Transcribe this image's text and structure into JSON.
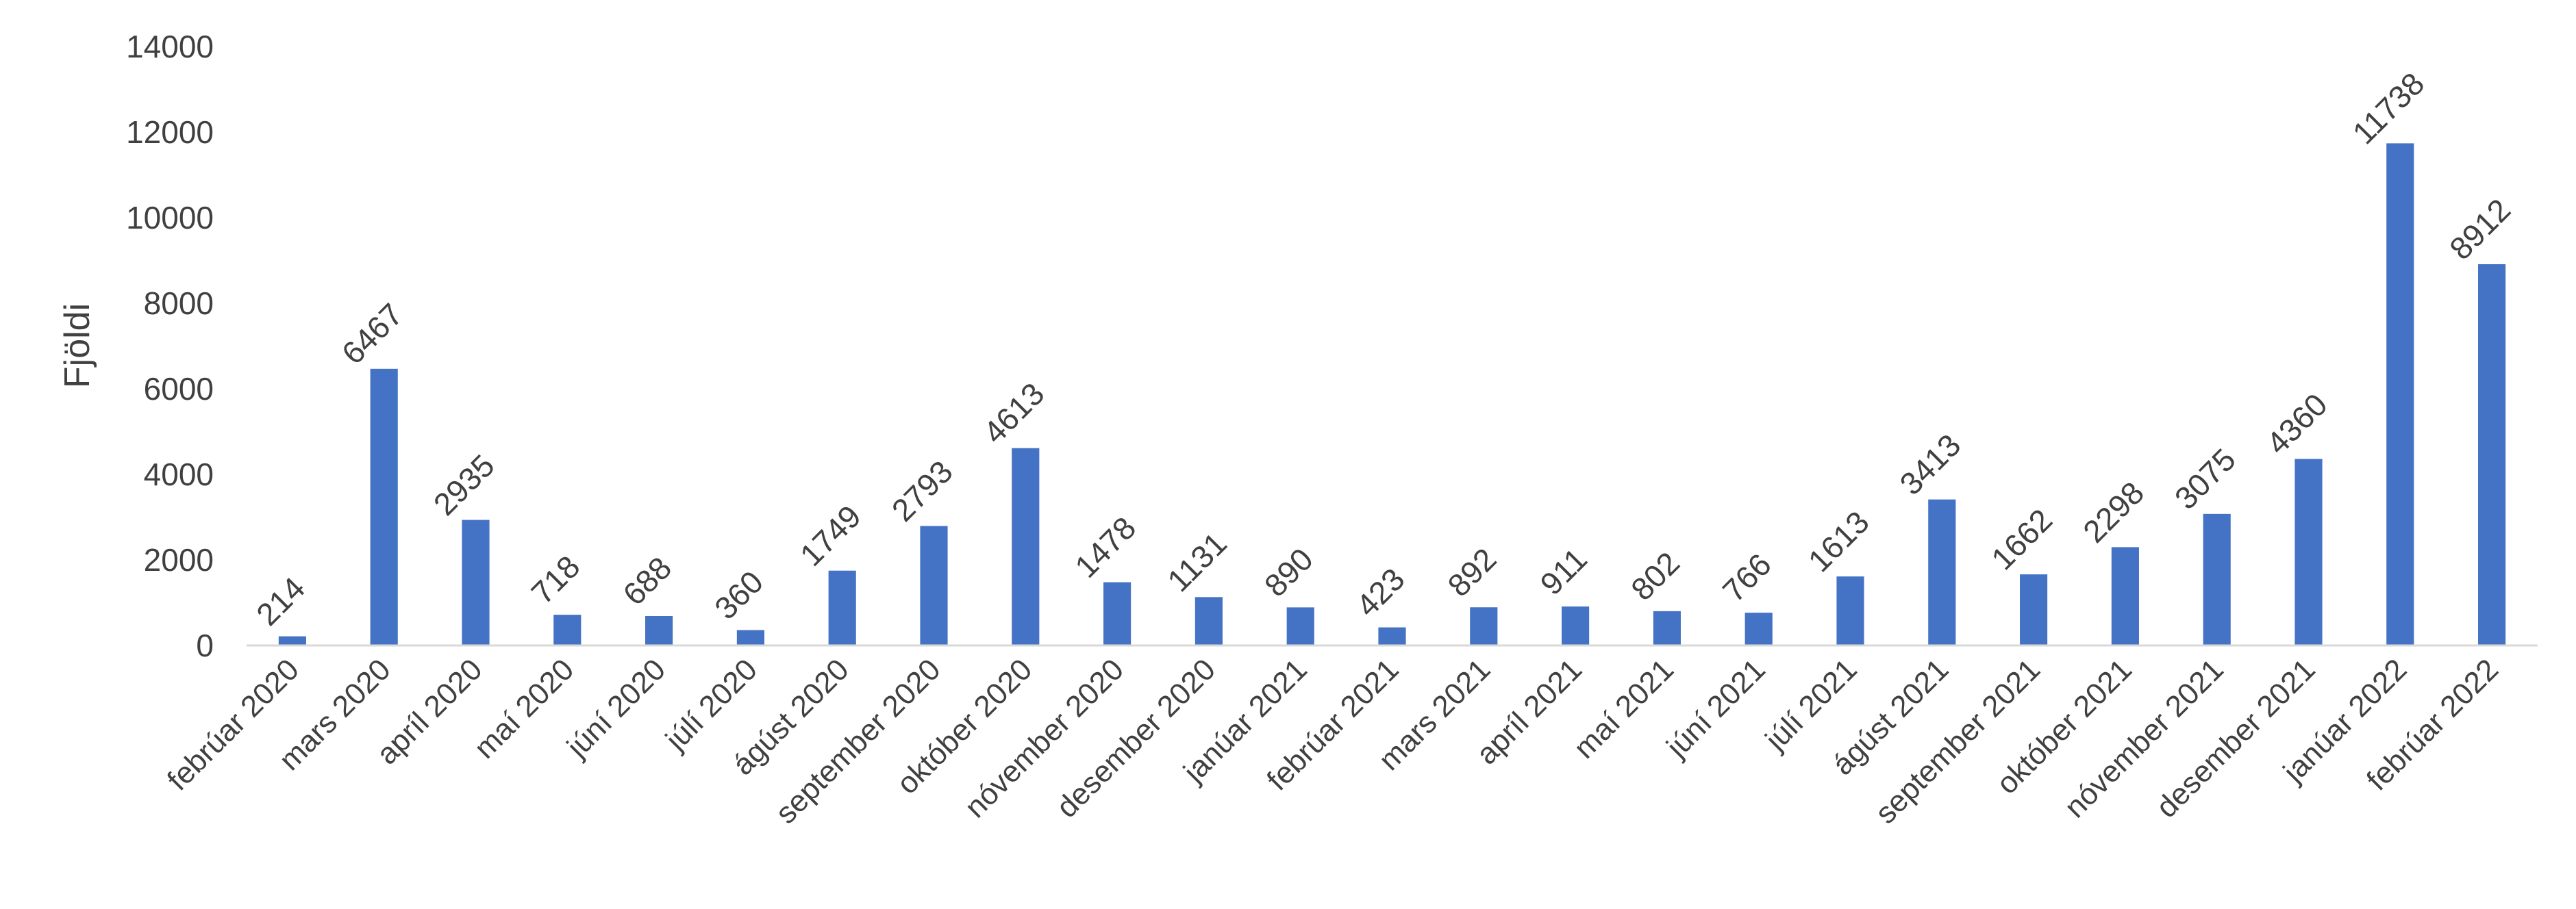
{
  "chart_data": {
    "type": "bar",
    "title": "",
    "xlabel": "",
    "ylabel": "Fjöldi",
    "ylim": [
      0,
      14000
    ],
    "yticks": [
      0,
      2000,
      4000,
      6000,
      8000,
      10000,
      12000,
      14000
    ],
    "grid": false,
    "legend": "none",
    "bar_color": "#4472C4",
    "categories": [
      "febrúar 2020",
      "mars 2020",
      "apríl 2020",
      "maí 2020",
      "júní 2020",
      "júlí 2020",
      "ágúst 2020",
      "september 2020",
      "október 2020",
      "nóvember 2020",
      "desember 2020",
      "janúar 2021",
      "febrúar 2021",
      "mars 2021",
      "apríl 2021",
      "maí 2021",
      "júní 2021",
      "júlí 2021",
      "ágúst 2021",
      "september 2021",
      "október 2021",
      "nóvember 2021",
      "desember 2021",
      "janúar 2022",
      "febrúar 2022"
    ],
    "values": [
      214,
      6467,
      2935,
      718,
      688,
      360,
      1749,
      2793,
      4613,
      1478,
      1131,
      890,
      423,
      892,
      911,
      802,
      766,
      1613,
      3413,
      1662,
      2298,
      3075,
      4360,
      11738,
      8912
    ]
  }
}
